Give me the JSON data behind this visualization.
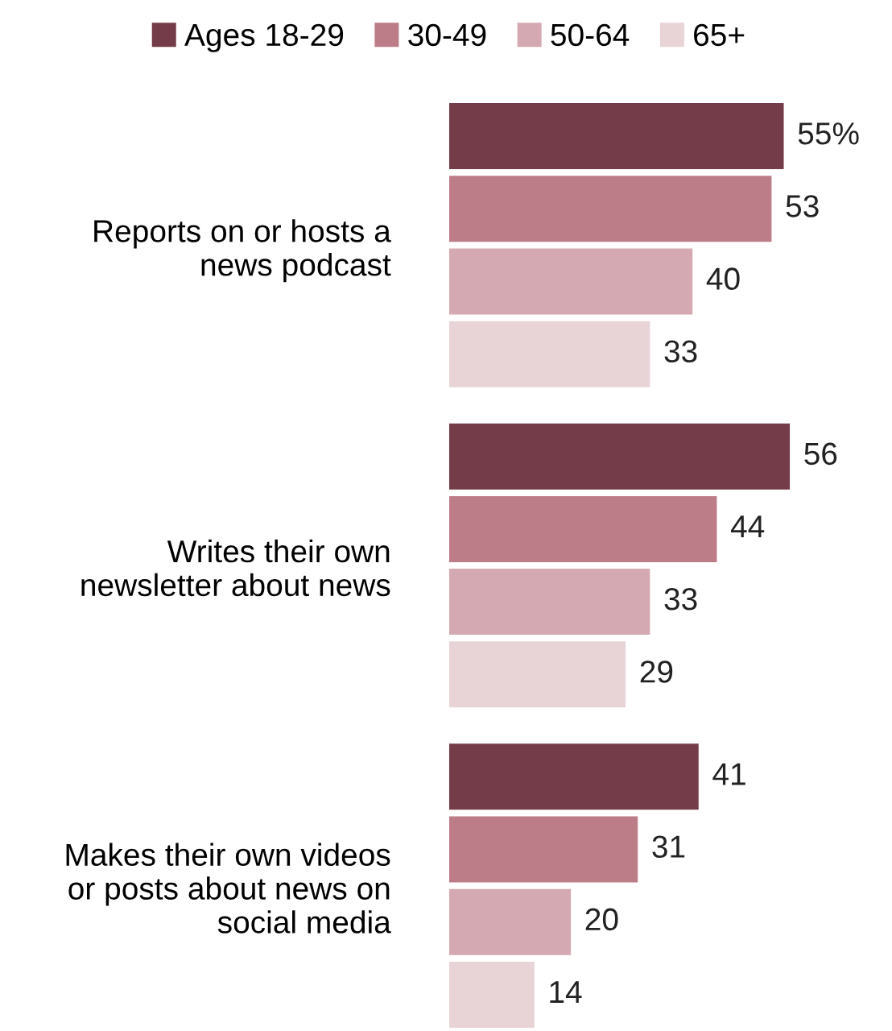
{
  "chart_data": {
    "type": "bar",
    "orientation": "horizontal",
    "legend": "top",
    "grid": false,
    "categories": [
      "Reports on or hosts a\nnews podcast",
      "Writes their own\nnewsletter about news",
      "Makes their own videos\nor posts about news on\nsocial media"
    ],
    "series": [
      {
        "name": "Ages 18-29",
        "color": "#743c49",
        "values": [
          55,
          56,
          41
        ],
        "value_labels": [
          "55%",
          "56",
          "41"
        ]
      },
      {
        "name": "30-49",
        "color": "#bc7d88",
        "values": [
          53,
          44,
          31
        ],
        "value_labels": [
          "53",
          "44",
          "31"
        ]
      },
      {
        "name": "50-64",
        "color": "#d4a9b1",
        "values": [
          40,
          33,
          20
        ],
        "value_labels": [
          "40",
          "33",
          "20"
        ]
      },
      {
        "name": "65+",
        "color": "#e8d3d7",
        "values": [
          33,
          29,
          14
        ],
        "value_labels": [
          "33",
          "29",
          "14"
        ]
      }
    ]
  }
}
